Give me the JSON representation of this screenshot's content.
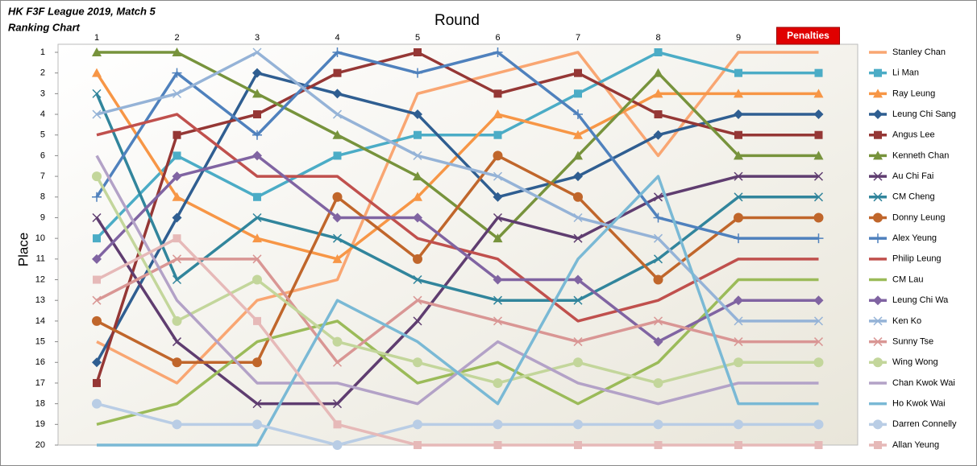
{
  "chart_data": {
    "type": "line",
    "title": "HK F3F League 2019, Match 5",
    "subtitle": "Ranking Chart",
    "x_label": "Round",
    "y_label": "Place",
    "categories": [
      "1",
      "2",
      "3",
      "4",
      "5",
      "6",
      "7",
      "8",
      "9",
      "Penalties"
    ],
    "ylim": [
      1,
      20
    ],
    "yticks": [
      1,
      2,
      3,
      4,
      5,
      6,
      7,
      8,
      9,
      10,
      11,
      12,
      13,
      14,
      15,
      16,
      17,
      18,
      19,
      20
    ],
    "y_reversed": true,
    "legend": "right",
    "series": [
      {
        "name": "Stanley Chan",
        "color": "#F9A672",
        "marker": "none",
        "values": [
          15,
          17,
          13,
          12,
          3,
          2,
          1,
          6,
          1,
          1
        ]
      },
      {
        "name": "Li Man",
        "color": "#4BACC6",
        "marker": "square",
        "values": [
          10,
          6,
          8,
          6,
          5,
          5,
          3,
          1,
          2,
          2
        ]
      },
      {
        "name": "Ray Leung",
        "color": "#F79646",
        "marker": "triangle",
        "values": [
          2,
          8,
          10,
          11,
          8,
          4,
          5,
          3,
          3,
          3
        ]
      },
      {
        "name": "Leung Chi Sang",
        "color": "#2F5E91",
        "marker": "diamond",
        "values": [
          16,
          9,
          2,
          3,
          4,
          8,
          7,
          5,
          4,
          4
        ]
      },
      {
        "name": "Angus Lee",
        "color": "#953735",
        "marker": "square",
        "values": [
          17,
          5,
          4,
          2,
          1,
          3,
          2,
          4,
          5,
          5
        ]
      },
      {
        "name": "Kenneth Chan",
        "color": "#77933C",
        "marker": "triangle",
        "values": [
          1,
          1,
          3,
          5,
          7,
          10,
          6,
          2,
          6,
          6
        ]
      },
      {
        "name": "Au Chi Fai",
        "color": "#5F3D70",
        "marker": "x",
        "values": [
          9,
          15,
          18,
          18,
          14,
          9,
          10,
          8,
          7,
          7
        ]
      },
      {
        "name": "CM Cheng",
        "color": "#31859C",
        "marker": "x",
        "values": [
          3,
          12,
          9,
          10,
          12,
          13,
          13,
          11,
          8,
          8
        ]
      },
      {
        "name": "Donny Leung",
        "color": "#C0662B",
        "marker": "circle",
        "values": [
          14,
          16,
          16,
          8,
          11,
          6,
          8,
          12,
          9,
          9
        ]
      },
      {
        "name": "Alex Yeung",
        "color": "#4F81BD",
        "marker": "plus",
        "values": [
          8,
          2,
          5,
          1,
          2,
          1,
          4,
          9,
          10,
          10
        ]
      },
      {
        "name": "Philip Leung",
        "color": "#C0504D",
        "marker": "none",
        "values": [
          5,
          4,
          7,
          7,
          10,
          11,
          14,
          13,
          11,
          11
        ]
      },
      {
        "name": "CM Lau",
        "color": "#9BBB59",
        "marker": "none",
        "values": [
          19,
          18,
          15,
          14,
          17,
          16,
          18,
          16,
          12,
          12
        ]
      },
      {
        "name": "Leung Chi Wa",
        "color": "#8064A2",
        "marker": "diamond",
        "values": [
          11,
          7,
          6,
          9,
          9,
          12,
          12,
          15,
          13,
          13
        ]
      },
      {
        "name": "Ken Ko",
        "color": "#95B3D7",
        "marker": "x",
        "values": [
          4,
          3,
          1,
          4,
          6,
          7,
          9,
          10,
          14,
          14
        ]
      },
      {
        "name": "Sunny Tse",
        "color": "#D99694",
        "marker": "x",
        "values": [
          13,
          11,
          11,
          16,
          13,
          14,
          15,
          14,
          15,
          15
        ]
      },
      {
        "name": "Wing Wong",
        "color": "#C3D69B",
        "marker": "circle",
        "values": [
          7,
          14,
          12,
          15,
          16,
          17,
          16,
          17,
          16,
          16
        ]
      },
      {
        "name": "Chan Kwok Wai",
        "color": "#B3A2C7",
        "marker": "none",
        "values": [
          6,
          13,
          17,
          17,
          18,
          15,
          17,
          18,
          17,
          17
        ]
      },
      {
        "name": "Ho Kwok Wai",
        "color": "#7AB9D5",
        "marker": "none",
        "values": [
          20,
          20,
          20,
          13,
          15,
          18,
          11,
          7,
          18,
          18
        ]
      },
      {
        "name": "Darren Connelly",
        "color": "#B9CDE5",
        "marker": "circle",
        "values": [
          18,
          19,
          19,
          20,
          19,
          19,
          19,
          19,
          19,
          19
        ]
      },
      {
        "name": "Allan Yeung",
        "color": "#E6B9B8",
        "marker": "square",
        "values": [
          12,
          10,
          14,
          19,
          20,
          20,
          20,
          20,
          20,
          20
        ]
      }
    ]
  }
}
